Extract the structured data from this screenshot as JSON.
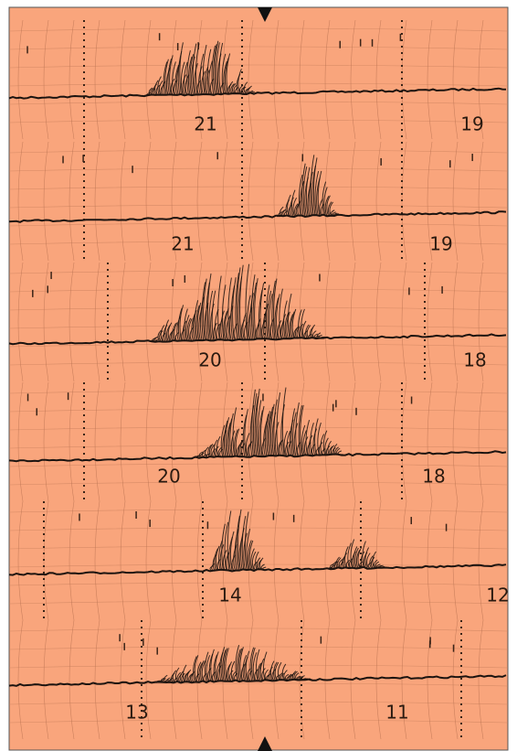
{
  "traces": [
    {
      "labels": [
        "21",
        "19"
      ]
    },
    {
      "labels": [
        "21",
        "19"
      ]
    },
    {
      "labels": [
        "20",
        "18"
      ]
    },
    {
      "labels": [
        "20",
        "18"
      ]
    },
    {
      "labels": [
        "14",
        "12"
      ]
    },
    {
      "labels": [
        "13",
        "11"
      ]
    }
  ]
}
